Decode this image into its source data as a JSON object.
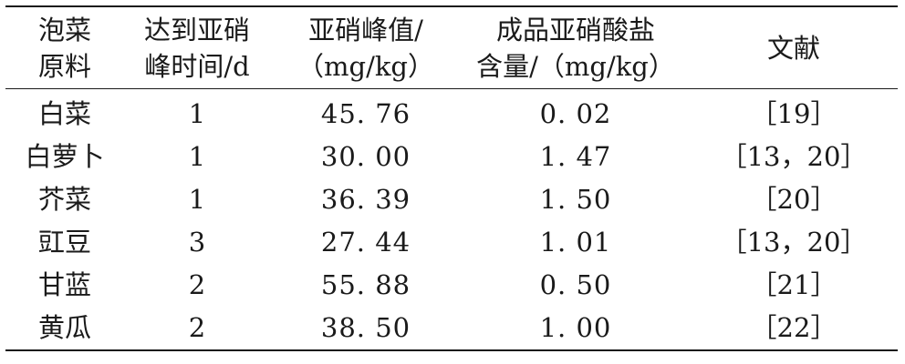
{
  "table": {
    "headers": [
      [
        "泡菜",
        "原料"
      ],
      [
        "达到亚硝",
        "峰时间/d"
      ],
      [
        "亚硝峰值/",
        "（mg/kg）"
      ],
      [
        "成品亚硝酸盐",
        "含量/（mg/kg）"
      ],
      [
        "文献"
      ]
    ],
    "rows": [
      [
        "白菜",
        "1",
        "45. 76",
        "0. 02",
        "［19］"
      ],
      [
        "白萝卜",
        "1",
        "30. 00",
        "1. 47",
        "［13，20］"
      ],
      [
        "芥菜",
        "1",
        "36. 39",
        "1. 50",
        "［20］"
      ],
      [
        "豇豆",
        "3",
        "27. 44",
        "1. 01",
        "［13，20］"
      ],
      [
        "甘蓝",
        "2",
        "55. 88",
        "0. 50",
        "［21］"
      ],
      [
        "黄瓜",
        "2",
        "38. 50",
        "1. 00",
        "［22］"
      ]
    ]
  }
}
